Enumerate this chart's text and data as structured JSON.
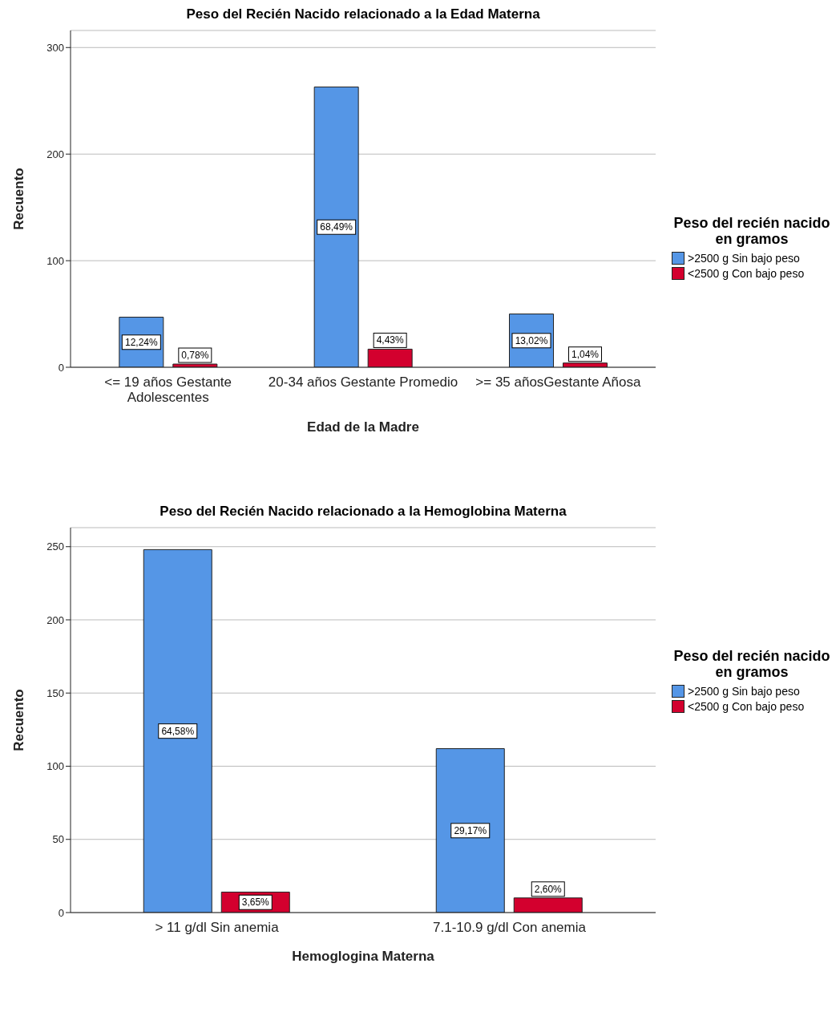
{
  "chart_data": [
    {
      "type": "bar",
      "title": "Peso del Recién Nacido relacionado a la Edad Materna",
      "xlabel": "Edad de la Madre",
      "ylabel": "Recuento",
      "legend_title": "Peso del recién nacido en gramos",
      "categories": [
        "<= 19 años Gestante Adolescentes",
        "20-34 años Gestante Promedio",
        ">= 35 añosGestante Añosa"
      ],
      "series": [
        {
          "name": ">2500 g Sin bajo peso",
          "color": "#5596e6",
          "values": [
            47,
            263,
            50
          ]
        },
        {
          "name": "<2500 g Con bajo peso",
          "color": "#d3002e",
          "values": [
            3,
            17,
            4
          ]
        }
      ],
      "annotations": [
        "12,24%",
        "68,49%",
        "13,02%",
        "0,78%",
        "4,43%",
        "1,04%"
      ],
      "ylim": [
        0,
        316
      ],
      "yticks": [
        0,
        100,
        200,
        300
      ],
      "grid": "y",
      "legend": "right"
    },
    {
      "type": "bar",
      "title": "Peso del Recién Nacido  relacionado a la Hemoglobina Materna",
      "xlabel": "Hemoglogina Materna",
      "ylabel": "Recuento",
      "legend_title": "Peso del recién nacido en gramos",
      "categories": [
        "> 11 g/dl Sin anemia",
        "7.1-10.9  g/dl Con anemia"
      ],
      "series": [
        {
          "name": ">2500 g Sin bajo peso",
          "color": "#5596e6",
          "values": [
            248,
            112
          ]
        },
        {
          "name": "<2500 g Con bajo peso",
          "color": "#d3002e",
          "values": [
            14,
            10
          ]
        }
      ],
      "annotations": [
        "64,58%",
        "29,17%",
        "3,65%",
        "2,60%"
      ],
      "ylim": [
        0,
        263
      ],
      "yticks": [
        0,
        50,
        100,
        150,
        200,
        250
      ],
      "grid": "y",
      "legend": "right"
    }
  ]
}
